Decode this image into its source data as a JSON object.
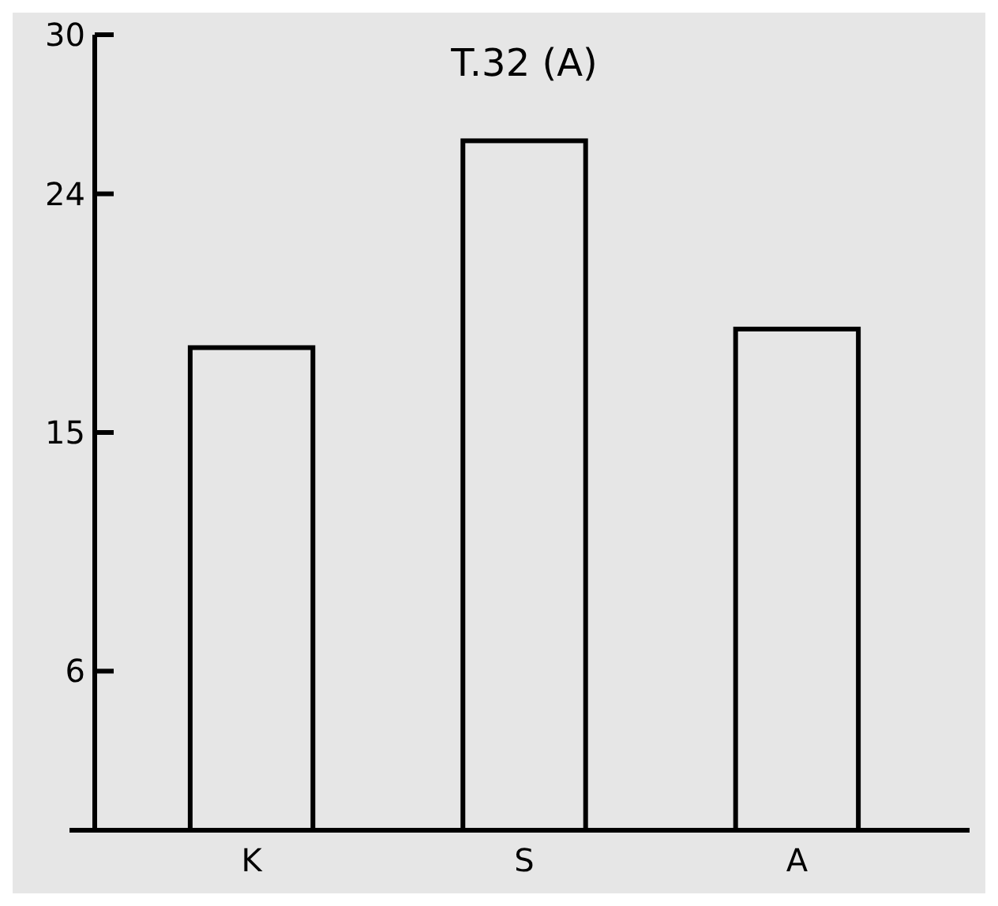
{
  "chart_data": {
    "type": "bar",
    "title": "T.32 (A)",
    "categories": [
      "K",
      "S",
      "A"
    ],
    "values": [
      18.2,
      26,
      18.9
    ],
    "color": "#000000",
    "ylim": [
      0,
      30
    ],
    "yticks": [
      6,
      15,
      24,
      30
    ],
    "grid": false
  }
}
